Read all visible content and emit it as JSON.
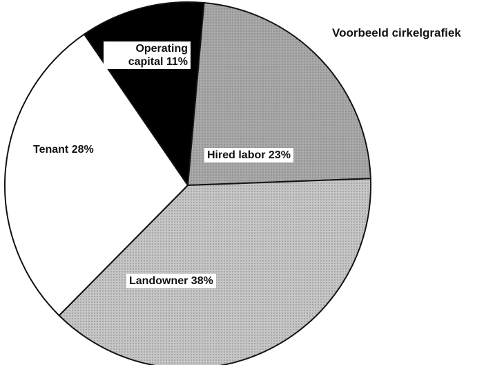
{
  "chart_data": {
    "type": "pie",
    "title": "Voorbeeld cirkelgrafiek",
    "categories": [
      "Operating capital",
      "Hired labor",
      "Landowner",
      "Tenant"
    ],
    "values": [
      11,
      23,
      38,
      28
    ],
    "value_labels": [
      "11%",
      "23%",
      "38%",
      "28%"
    ],
    "colors": [
      "#000000",
      "#a9a9a9",
      "#c6c6c6",
      "#ffffff"
    ]
  }
}
